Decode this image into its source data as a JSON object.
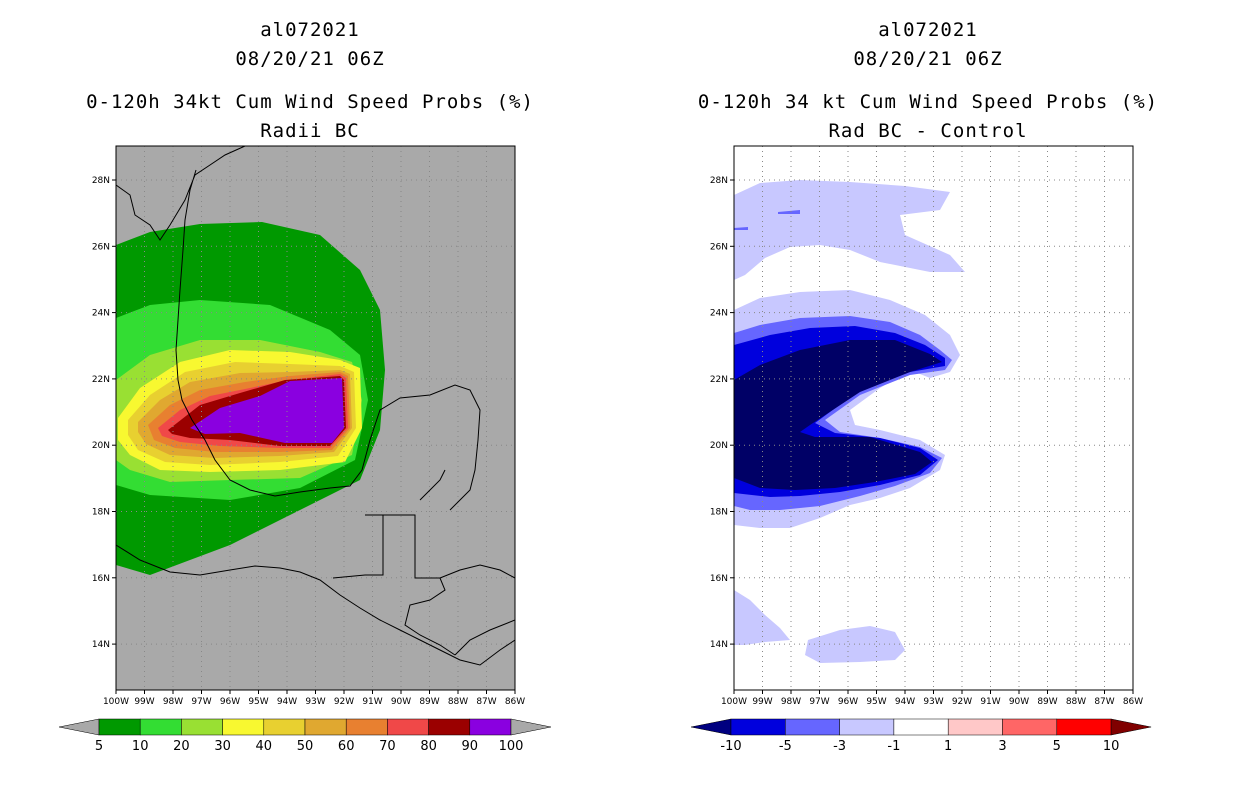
{
  "panels": [
    {
      "id": "left",
      "storm_id": "al072021",
      "datetime": "08/20/21 06Z",
      "title": "0-120h 34kt Cum Wind Speed Probs (%)",
      "subtitle": "Radii BC",
      "map_background": "#a9a9a9",
      "lat_ticks": [
        "28N",
        "26N",
        "24N",
        "22N",
        "20N",
        "18N",
        "16N",
        "14N"
      ],
      "lon_ticks": [
        "100W",
        "99W",
        "98W",
        "97W",
        "96W",
        "95W",
        "94W",
        "93W",
        "92W",
        "91W",
        "90W",
        "89W",
        "88W",
        "87W",
        "86W"
      ],
      "colorbar": {
        "colors": [
          "#009900",
          "#33dd33",
          "#99e033",
          "#f8f830",
          "#e8d030",
          "#e0a830",
          "#e88030",
          "#f04848",
          "#9b0000",
          "#8a00e0"
        ],
        "labels": [
          "5",
          "10",
          "20",
          "30",
          "40",
          "50",
          "60",
          "70",
          "80",
          "90",
          "100"
        ],
        "under_color": "#a9a9a9",
        "over_color": "#a9a9a9"
      }
    },
    {
      "id": "right",
      "storm_id": "al072021",
      "datetime": "08/20/21 06Z",
      "title": "0-120h 34 kt Cum Wind Speed Probs (%)",
      "subtitle": "Rad BC - Control",
      "map_background": "#ffffff",
      "lat_ticks": [
        "28N",
        "26N",
        "24N",
        "22N",
        "20N",
        "18N",
        "16N",
        "14N"
      ],
      "lon_ticks": [
        "100W",
        "99W",
        "98W",
        "97W",
        "96W",
        "95W",
        "94W",
        "93W",
        "92W",
        "91W",
        "90W",
        "89W",
        "88W",
        "87W",
        "86W"
      ],
      "colorbar": {
        "colors": [
          "#0000dd",
          "#6666ff",
          "#c8c8ff",
          "#ffffff",
          "#ffc8c8",
          "#ff6666",
          "#ff0000"
        ],
        "labels": [
          "-10",
          "-5",
          "-3",
          "-1",
          "1",
          "3",
          "5",
          "10"
        ],
        "under_color": "#000080",
        "over_color": "#800000"
      }
    }
  ]
}
